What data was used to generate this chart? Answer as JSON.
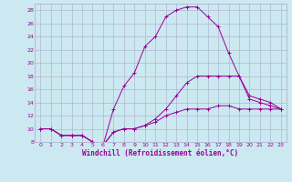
{
  "xlabel": "Windchill (Refroidissement éolien,°C)",
  "bg_color": "#cce8f0",
  "grid_color": "#aaaacc",
  "line_color": "#990099",
  "xlim": [
    -0.5,
    23.5
  ],
  "ylim": [
    8,
    29
  ],
  "xticks": [
    0,
    1,
    2,
    3,
    4,
    5,
    6,
    7,
    8,
    9,
    10,
    11,
    12,
    13,
    14,
    15,
    16,
    17,
    18,
    19,
    20,
    21,
    22,
    23
  ],
  "yticks": [
    8,
    10,
    12,
    14,
    16,
    18,
    20,
    22,
    24,
    26,
    28
  ],
  "lines": [
    {
      "x": [
        0,
        1,
        2,
        3,
        4,
        5,
        6,
        7,
        8,
        9,
        10,
        11,
        12,
        13,
        14,
        15,
        16,
        17,
        18,
        19,
        20,
        21,
        22,
        23
      ],
      "y": [
        10,
        10,
        9,
        9,
        9,
        8,
        7.5,
        9.5,
        10,
        10,
        10.5,
        11,
        12,
        12.5,
        13,
        13,
        13,
        13.5,
        13.5,
        13,
        13,
        13,
        13,
        13
      ]
    },
    {
      "x": [
        0,
        1,
        2,
        3,
        4,
        5,
        6,
        7,
        8,
        9,
        10,
        11,
        12,
        13,
        14,
        15,
        16,
        17,
        18,
        19,
        20,
        21,
        22,
        23
      ],
      "y": [
        10,
        10,
        9,
        9,
        9,
        8,
        7.5,
        13,
        16.5,
        18.5,
        22.5,
        24,
        27,
        28,
        28.5,
        28.5,
        27,
        25.5,
        21.5,
        18,
        14.5,
        14,
        13.5,
        13
      ]
    },
    {
      "x": [
        0,
        1,
        2,
        3,
        4,
        5,
        6,
        7,
        8,
        9,
        10,
        11,
        12,
        13,
        14,
        15,
        16,
        17,
        18,
        19,
        20,
        21,
        22,
        23
      ],
      "y": [
        10,
        10,
        9,
        9,
        9,
        8,
        7.5,
        9.5,
        10,
        10,
        10.5,
        11.5,
        13,
        15,
        17,
        18,
        18,
        18,
        18,
        18,
        15,
        14.5,
        14,
        13
      ]
    }
  ]
}
